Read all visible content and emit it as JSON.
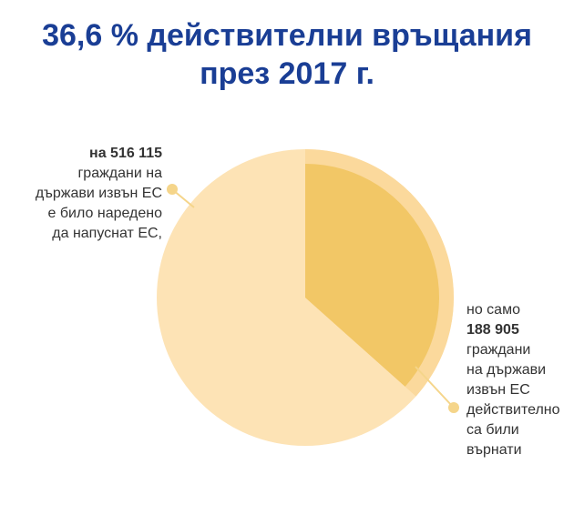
{
  "title": {
    "line1": "36,6 % действителни връщания",
    "line2": "през 2017 г."
  },
  "annotations": {
    "left": {
      "bold": "на 516 115",
      "lines": [
        "граждани на",
        "държави извън ЕС",
        "е било наредено",
        "да напуснат ЕС,"
      ]
    },
    "right": {
      "intro": "но само",
      "bold": "188 905",
      "lines": [
        "граждани",
        "на държави",
        "извън ЕС",
        "действително",
        "са били",
        "върнати"
      ]
    }
  },
  "chart_data": {
    "type": "pie",
    "title": "36,6 % действителни връщания през 2017 г.",
    "total": 516115,
    "slices": [
      {
        "value": 188905,
        "percent": 36.6
      },
      {
        "value": 327210,
        "percent": 63.4
      }
    ]
  },
  "colors": {
    "title": "#1a3e95",
    "pie_base": "#fde3b5",
    "pie_slice": "#f2c766",
    "slice_halo": "#fbd99c",
    "callout": "#f5d58a",
    "text": "#333333"
  }
}
